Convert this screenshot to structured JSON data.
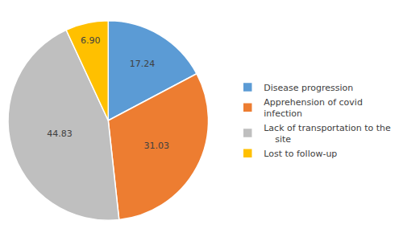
{
  "chart_data": {
    "type": "pie",
    "categories": [
      "Disease progression",
      "Apprehension of covid\ninfection",
      "Lack of transportation to the\n    site",
      "Lost to follow-up"
    ],
    "values": [
      17.24,
      31.03,
      44.83,
      6.9
    ],
    "value_labels": [
      "17.24",
      "31.03",
      "44.83",
      "6.90"
    ],
    "colors": [
      "#5B9BD5",
      "#ED7D31",
      "#BFBFBF",
      "#FFC000"
    ],
    "data_labels": true,
    "legend": "right"
  }
}
